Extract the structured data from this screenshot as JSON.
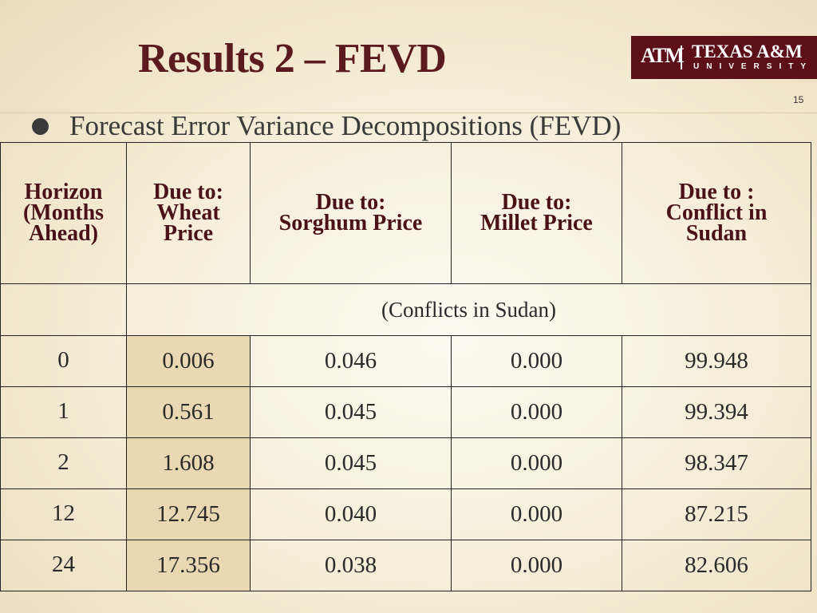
{
  "header": {
    "title": "Results 2 – FEVD",
    "page_number": "15"
  },
  "logo": {
    "monogram": "ATM",
    "name": "TEXAS A&M",
    "sub": "UNIVERSITY"
  },
  "bullet": "Forecast Error Variance Decompositions (FEVD)",
  "table": {
    "headers": [
      [
        "Horizon",
        "(Months",
        "Ahead)"
      ],
      [
        "Due to:",
        "Wheat",
        "Price"
      ],
      [
        "Due to:",
        "Sorghum Price"
      ],
      [
        "Due to:",
        "Millet Price"
      ],
      [
        "Due to :",
        "Conflict in",
        "Sudan"
      ]
    ],
    "subheader": "(Conflicts in Sudan)",
    "rows": [
      [
        "0",
        "0.006",
        "0.046",
        "0.000",
        "99.948"
      ],
      [
        "1",
        "0.561",
        "0.045",
        "0.000",
        "99.394"
      ],
      [
        "2",
        "1.608",
        "0.045",
        "0.000",
        "98.347"
      ],
      [
        "12",
        "12.745",
        "0.040",
        "0.000",
        "87.215"
      ],
      [
        "24",
        "17.356",
        "0.038",
        "0.000",
        "82.606"
      ]
    ]
  }
}
